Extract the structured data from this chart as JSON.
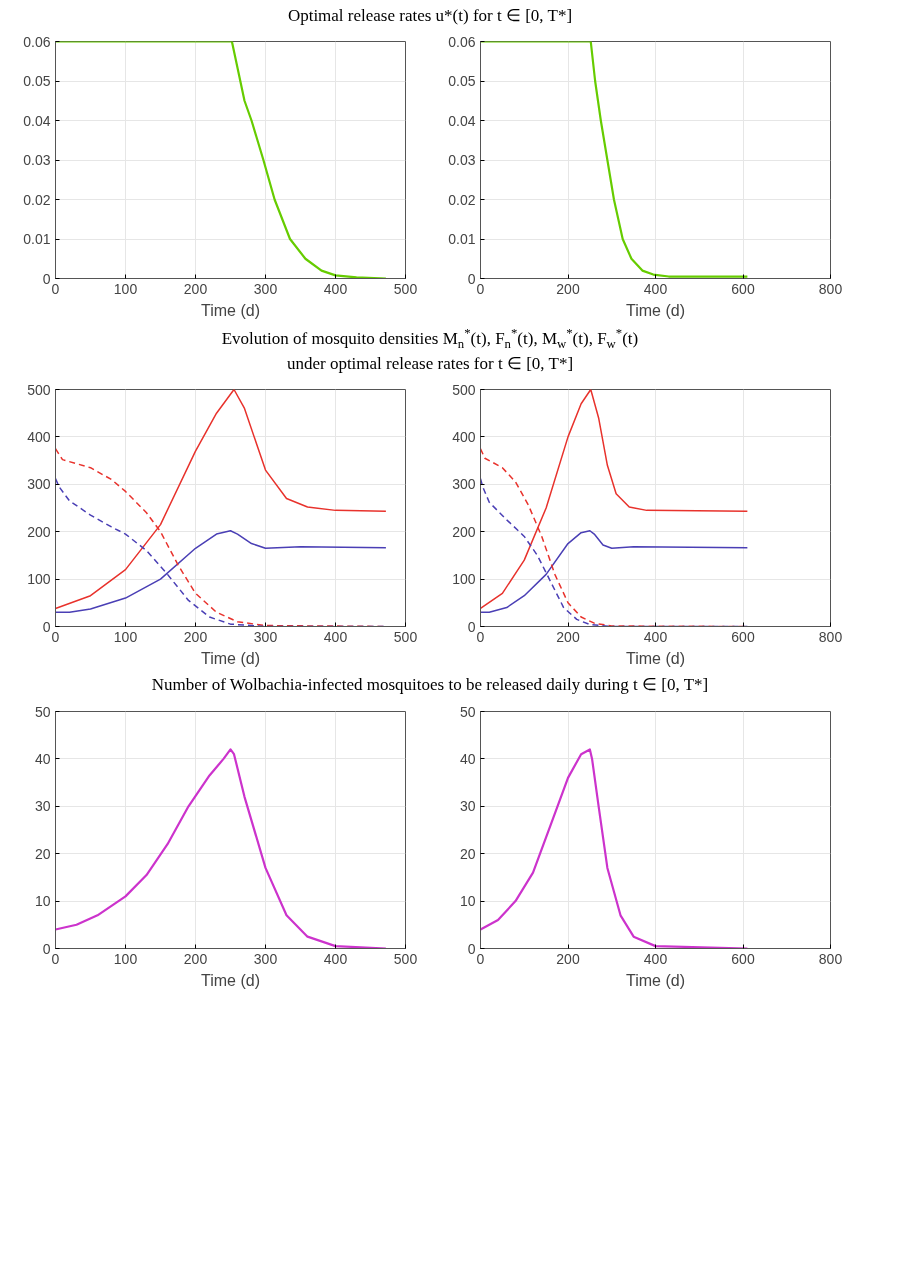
{
  "chart_data": [
    {
      "type": "line",
      "title": "Optimal release rates u*(t) for t ∈ [0, T*]",
      "xlabel": "Time (d)",
      "xlim": [
        0,
        500
      ],
      "xticks": [
        0,
        100,
        200,
        300,
        400,
        500
      ],
      "ylim": [
        0,
        0.06
      ],
      "yticks": [
        0,
        0.01,
        0.02,
        0.03,
        0.04,
        0.05,
        0.06
      ],
      "grid": true,
      "series": [
        {
          "color": "#66cc00",
          "line_style": "solid",
          "x": [
            0,
            252,
            258,
            270,
            280,
            297,
            313,
            335,
            357,
            380,
            400,
            430,
            472
          ],
          "values": [
            0.06,
            0.06,
            0.055,
            0.045,
            0.04,
            0.03,
            0.02,
            0.01,
            0.005,
            0.002,
            0.0008,
            0.0003,
            0
          ]
        }
      ]
    },
    {
      "type": "line",
      "xlabel": "Time (d)",
      "xlim": [
        0,
        800
      ],
      "xticks": [
        0,
        200,
        400,
        600,
        800
      ],
      "ylim": [
        0,
        0.06
      ],
      "yticks": [
        0,
        0.01,
        0.02,
        0.03,
        0.04,
        0.05,
        0.06
      ],
      "grid": true,
      "series": [
        {
          "color": "#66cc00",
          "line_style": "solid",
          "x": [
            0,
            252,
            262,
            275,
            290,
            305,
            325,
            345,
            370,
            395,
            430,
            610
          ],
          "values": [
            0.06,
            0.06,
            0.05,
            0.04,
            0.03,
            0.02,
            0.01,
            0.005,
            0.002,
            0.001,
            0.0005,
            0.0005
          ]
        }
      ]
    },
    {
      "type": "line",
      "title": "Evolution of mosquito densities M$_{n}$$^{*}$(t), F$_{n}$$^{*}$(t), M$_{w}$$^{*}$(t), F$_{w}$$^{*}$(t)\nunder optimal release rates for t ∈ [0, T*]",
      "xlabel": "Time (d)",
      "xlim": [
        0,
        500
      ],
      "xticks": [
        0,
        100,
        200,
        300,
        400,
        500
      ],
      "ylim": [
        0,
        500
      ],
      "yticks": [
        0,
        100,
        200,
        300,
        400,
        500
      ],
      "grid": true,
      "series": [
        {
          "color": "#e8322c",
          "line_style": "solid",
          "x": [
            0,
            50,
            100,
            150,
            200,
            230,
            255,
            270,
            300,
            330,
            360,
            400,
            472
          ],
          "values": [
            38,
            65,
            120,
            215,
            370,
            450,
            500,
            460,
            330,
            270,
            252,
            245,
            243
          ]
        },
        {
          "color": "#4a3fb5",
          "line_style": "solid",
          "x": [
            0,
            20,
            50,
            100,
            150,
            200,
            230,
            250,
            260,
            280,
            300,
            350,
            472
          ],
          "values": [
            30,
            30,
            37,
            60,
            100,
            165,
            195,
            202,
            195,
            175,
            165,
            168,
            166
          ]
        },
        {
          "color": "#e8322c",
          "line_style": "dashed",
          "x": [
            0,
            10,
            50,
            80,
            100,
            130,
            150,
            175,
            200,
            230,
            260,
            300,
            472
          ],
          "values": [
            375,
            352,
            335,
            310,
            285,
            240,
            200,
            130,
            70,
            30,
            10,
            2,
            0
          ]
        },
        {
          "color": "#4a3fb5",
          "line_style": "dashed",
          "x": [
            0,
            5,
            20,
            50,
            80,
            100,
            130,
            160,
            190,
            220,
            250,
            300,
            472
          ],
          "values": [
            312,
            295,
            265,
            235,
            210,
            195,
            160,
            110,
            55,
            20,
            5,
            0,
            0
          ]
        }
      ]
    },
    {
      "type": "line",
      "xlabel": "Time (d)",
      "xlim": [
        0,
        800
      ],
      "xticks": [
        0,
        200,
        400,
        600,
        800
      ],
      "ylim": [
        0,
        500
      ],
      "yticks": [
        0,
        100,
        200,
        300,
        400,
        500
      ],
      "grid": true,
      "series": [
        {
          "color": "#e8322c",
          "line_style": "solid",
          "x": [
            0,
            50,
            100,
            150,
            200,
            230,
            252,
            270,
            290,
            310,
            340,
            380,
            610
          ],
          "values": [
            38,
            70,
            140,
            250,
            400,
            470,
            500,
            440,
            340,
            280,
            252,
            245,
            243
          ]
        },
        {
          "color": "#4a3fb5",
          "line_style": "solid",
          "x": [
            0,
            20,
            60,
            100,
            150,
            200,
            230,
            250,
            260,
            280,
            300,
            350,
            610
          ],
          "values": [
            30,
            30,
            40,
            65,
            110,
            175,
            198,
            202,
            195,
            172,
            165,
            168,
            166
          ]
        },
        {
          "color": "#e8322c",
          "line_style": "dashed",
          "x": [
            0,
            10,
            50,
            80,
            110,
            140,
            170,
            200,
            230,
            260,
            300,
            610
          ],
          "values": [
            375,
            355,
            335,
            305,
            255,
            190,
            110,
            50,
            20,
            7,
            1,
            0
          ]
        },
        {
          "color": "#4a3fb5",
          "line_style": "dashed",
          "x": [
            0,
            5,
            20,
            60,
            100,
            130,
            160,
            190,
            220,
            250,
            300,
            610
          ],
          "values": [
            312,
            295,
            262,
            225,
            190,
            150,
            95,
            40,
            15,
            4,
            0,
            0
          ]
        }
      ]
    },
    {
      "type": "line",
      "title": "Number of Wolbachia-infected mosquitoes to be released daily during t ∈ [0, T*]",
      "xlabel": "Time (d)",
      "xlim": [
        0,
        500
      ],
      "xticks": [
        0,
        100,
        200,
        300,
        400,
        500
      ],
      "ylim": [
        0,
        50
      ],
      "yticks": [
        0,
        10,
        20,
        30,
        40,
        50
      ],
      "grid": true,
      "series": [
        {
          "color": "#cc33cc",
          "line_style": "solid",
          "x": [
            0,
            30,
            60,
            100,
            130,
            160,
            190,
            220,
            240,
            250,
            255,
            270,
            300,
            330,
            360,
            400,
            472
          ],
          "values": [
            4,
            5,
            7,
            11,
            15.5,
            22,
            30,
            36.5,
            40,
            42,
            41,
            32,
            17,
            7,
            2.5,
            0.5,
            0
          ]
        }
      ]
    },
    {
      "type": "line",
      "xlabel": "Time (d)",
      "xlim": [
        0,
        800
      ],
      "xticks": [
        0,
        200,
        400,
        600,
        800
      ],
      "ylim": [
        0,
        50
      ],
      "yticks": [
        0,
        10,
        20,
        30,
        40,
        50
      ],
      "grid": true,
      "series": [
        {
          "color": "#cc33cc",
          "line_style": "solid",
          "x": [
            0,
            40,
            80,
            120,
            160,
            200,
            230,
            250,
            255,
            270,
            290,
            320,
            350,
            400,
            610
          ],
          "values": [
            4,
            6,
            10,
            16,
            26,
            36,
            41,
            42,
            40,
            30,
            17,
            7,
            2.5,
            0.5,
            0
          ]
        }
      ]
    }
  ]
}
